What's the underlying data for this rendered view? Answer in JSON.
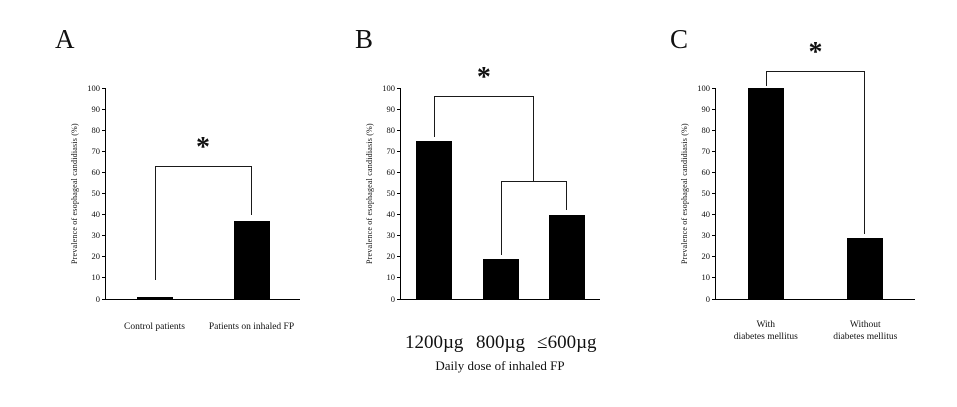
{
  "figure": {
    "background": "#ffffff",
    "bar_color": "#000000",
    "significance_marker": "*"
  },
  "chart_data": [
    {
      "type": "bar",
      "panel_label": "A",
      "ylabel": "Prevalence of esophageal candidiasis (%)",
      "ylim": [
        0,
        100
      ],
      "ytick_step": 10,
      "grid": false,
      "legend": false,
      "categories": [
        "Control patients",
        "Patients on inhaled FP"
      ],
      "values": [
        1,
        37
      ],
      "significance_brackets": [
        {
          "label": "*",
          "x1": 0,
          "x2": 1,
          "y": 63,
          "y1_end": 9,
          "y2_end": 40
        }
      ]
    },
    {
      "type": "bar",
      "panel_label": "B",
      "ylabel": "Prevalence of esophageal candidiasis (%)",
      "xlabel": "Daily dose of inhaled FP",
      "ylim": [
        0,
        100
      ],
      "ytick_step": 10,
      "grid": false,
      "legend": false,
      "categories": [
        "1200µg",
        "800µg",
        "≤600µg"
      ],
      "category_style": "large",
      "values": [
        75,
        19,
        40
      ],
      "significance_brackets": [
        {
          "label": "*",
          "x1": 0,
          "x2": 1.5,
          "y": 96,
          "y1_end": 77,
          "y2_end": 56
        },
        {
          "label": "",
          "x1": 1,
          "x2": 2,
          "y": 56,
          "y1_end": 21,
          "y2_end": 42
        }
      ]
    },
    {
      "type": "bar",
      "panel_label": "C",
      "ylabel": "Prevalence of esophageal candidiasis (%)",
      "ylim": [
        0,
        100
      ],
      "ytick_step": 10,
      "grid": false,
      "legend": false,
      "categories": [
        "With\ndiabetes mellitus",
        "Without\ndiabetes mellitus"
      ],
      "values": [
        100,
        29
      ],
      "significance_brackets": [
        {
          "label": "*",
          "x1": 0,
          "x2": 1,
          "y": 108,
          "y1_end": 101,
          "y2_end": 31
        }
      ]
    }
  ]
}
